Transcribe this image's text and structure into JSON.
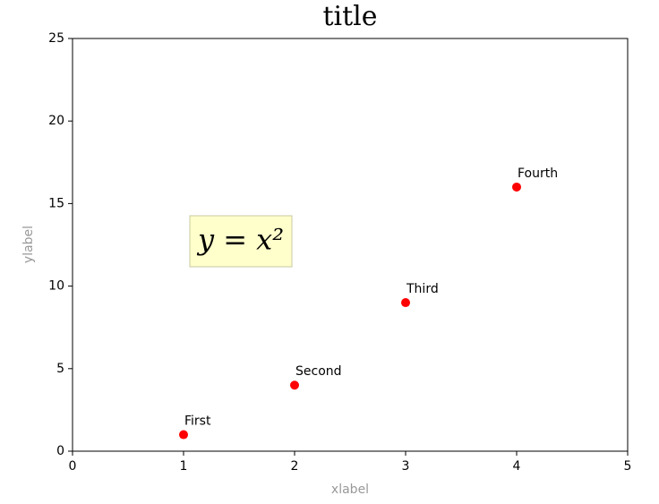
{
  "chart_data": {
    "type": "scatter",
    "title": "title",
    "x_label": "xlabel",
    "y_label": "ylabel",
    "x": [
      1,
      2,
      3,
      4
    ],
    "series": [
      {
        "color": "#ff0000",
        "values": [
          1,
          4,
          9,
          16
        ],
        "point_labels": [
          "First",
          "Second",
          "Third",
          "Fourth"
        ]
      }
    ],
    "xlim": [
      0,
      5
    ],
    "xticks": [
      0,
      1,
      2,
      3,
      4,
      5
    ],
    "ylim": [
      0,
      25
    ],
    "yticks": [
      0,
      5,
      10,
      15,
      20,
      25
    ],
    "annotation": "y = x²"
  }
}
